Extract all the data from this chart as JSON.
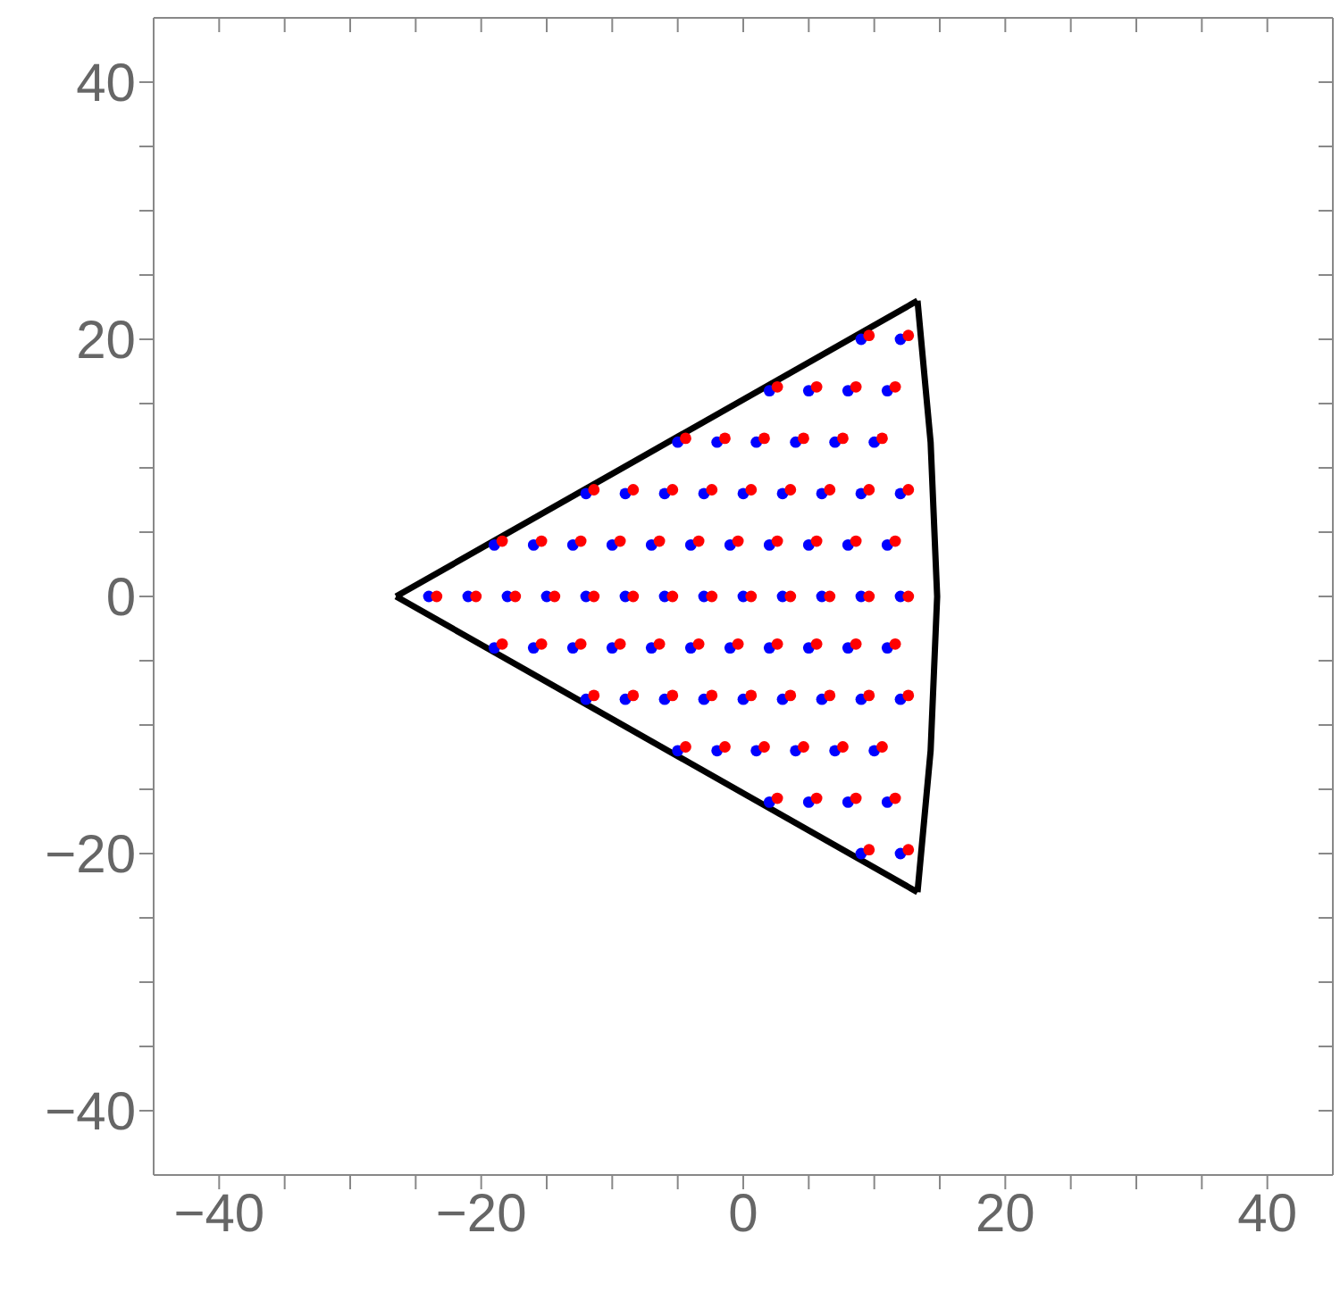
{
  "chart_data": {
    "type": "scatter",
    "marker": "circle",
    "grid": false,
    "xlim": [
      -45,
      45
    ],
    "ylim": [
      -45,
      45
    ],
    "xticks": [
      {
        "value": -40,
        "label": "−40"
      },
      {
        "value": -35,
        "label": null
      },
      {
        "value": -30,
        "label": null
      },
      {
        "value": -25,
        "label": null
      },
      {
        "value": -20,
        "label": "−20"
      },
      {
        "value": -15,
        "label": null
      },
      {
        "value": -10,
        "label": null
      },
      {
        "value": -5,
        "label": null
      },
      0,
      {
        "value": 5,
        "label": null
      },
      {
        "value": 10,
        "label": null
      },
      {
        "value": 15,
        "label": null
      },
      20,
      {
        "value": 25,
        "label": null
      },
      {
        "value": 30,
        "label": null
      },
      {
        "value": 35,
        "label": null
      },
      40
    ],
    "yticks": [
      {
        "value": -40,
        "label": "−40"
      },
      {
        "value": -35,
        "label": null
      },
      {
        "value": -30,
        "label": null
      },
      {
        "value": -25,
        "label": null
      },
      {
        "value": -20,
        "label": "−20"
      },
      {
        "value": -15,
        "label": null
      },
      {
        "value": -10,
        "label": null
      },
      {
        "value": -5,
        "label": null
      },
      0,
      {
        "value": 5,
        "label": null
      },
      {
        "value": 10,
        "label": null
      },
      {
        "value": 15,
        "label": null
      },
      20,
      {
        "value": 25,
        "label": null
      },
      {
        "value": 30,
        "label": null
      },
      {
        "value": 35,
        "label": null
      },
      40
    ],
    "series": [
      {
        "type": "line",
        "color": "#000000",
        "marker": "none",
        "x": [
          -26.5,
          13.3
        ],
        "values": [
          0,
          23
        ]
      },
      {
        "type": "line",
        "color": "#000000",
        "marker": "none",
        "x": [
          -26.5,
          13.3
        ],
        "values": [
          0,
          -23
        ]
      },
      {
        "type": "line",
        "color": "#000000",
        "marker": "none",
        "x": [
          13.3,
          14.3,
          14.8,
          14.3,
          13.3
        ],
        "values": [
          -23,
          -12,
          0,
          12,
          23
        ]
      },
      {
        "color": "#0000ff",
        "x": [
          -24,
          -21,
          -18,
          -15,
          -12,
          -9,
          -6,
          -3,
          0,
          3,
          6,
          9,
          12,
          -19,
          -16,
          -13,
          -10,
          -7,
          -4,
          -1,
          2,
          5,
          8,
          11,
          -19,
          -16,
          -13,
          -10,
          -7,
          -4,
          -1,
          2,
          5,
          8,
          11,
          -12,
          -9,
          -6,
          -3,
          0,
          3,
          6,
          9,
          12,
          -12,
          -9,
          -6,
          -3,
          0,
          3,
          6,
          9,
          12,
          -5,
          -2,
          1,
          4,
          7,
          10,
          -5,
          -2,
          1,
          4,
          7,
          10,
          2,
          5,
          8,
          11,
          2,
          5,
          8,
          11,
          9,
          12,
          9,
          12
        ],
        "values": [
          0,
          0,
          0,
          0,
          0,
          0,
          0,
          0,
          0,
          0,
          0,
          0,
          0,
          4,
          4,
          4,
          4,
          4,
          4,
          4,
          4,
          4,
          4,
          4,
          -4,
          -4,
          -4,
          -4,
          -4,
          -4,
          -4,
          -4,
          -4,
          -4,
          -4,
          8,
          8,
          8,
          8,
          8,
          8,
          8,
          8,
          8,
          -8,
          -8,
          -8,
          -8,
          -8,
          -8,
          -8,
          -8,
          -8,
          12,
          12,
          12,
          12,
          12,
          12,
          -12,
          -12,
          -12,
          -12,
          -12,
          -12,
          16,
          16,
          16,
          16,
          -16,
          -16,
          -16,
          -16,
          20,
          20,
          -20,
          -20
        ]
      },
      {
        "color": "#ff0000",
        "x": [
          -23.4,
          -20.4,
          -17.4,
          -14.4,
          -11.4,
          -8.4,
          -5.4,
          -2.4,
          0.6,
          3.6,
          6.6,
          9.6,
          12.6,
          -18.4,
          -15.4,
          -12.4,
          -9.4,
          -6.4,
          -3.4,
          -0.4,
          2.6,
          5.6,
          8.6,
          11.6,
          -18.4,
          -15.4,
          -12.4,
          -9.4,
          -6.4,
          -3.4,
          -0.4,
          2.6,
          5.6,
          8.6,
          11.6,
          -11.4,
          -8.4,
          -5.4,
          -2.4,
          0.6,
          3.6,
          6.6,
          9.6,
          12.6,
          -11.4,
          -8.4,
          -5.4,
          -2.4,
          0.6,
          3.6,
          6.6,
          9.6,
          12.6,
          -4.4,
          -1.4,
          1.6,
          4.6,
          7.6,
          10.6,
          -4.4,
          -1.4,
          1.6,
          4.6,
          7.6,
          10.6,
          2.6,
          5.6,
          8.6,
          11.6,
          2.6,
          5.6,
          8.6,
          11.6,
          9.6,
          12.6,
          9.6,
          12.6
        ],
        "values": [
          0,
          0,
          0,
          0,
          0,
          0,
          0,
          0,
          0,
          0,
          0,
          0,
          0,
          4.3,
          4.3,
          4.3,
          4.3,
          4.3,
          4.3,
          4.3,
          4.3,
          4.3,
          4.3,
          4.3,
          -3.7,
          -3.7,
          -3.7,
          -3.7,
          -3.7,
          -3.7,
          -3.7,
          -3.7,
          -3.7,
          -3.7,
          -3.7,
          8.3,
          8.3,
          8.3,
          8.3,
          8.3,
          8.3,
          8.3,
          8.3,
          8.3,
          -7.7,
          -7.7,
          -7.7,
          -7.7,
          -7.7,
          -7.7,
          -7.7,
          -7.7,
          -7.7,
          12.3,
          12.3,
          12.3,
          12.3,
          12.3,
          12.3,
          -11.7,
          -11.7,
          -11.7,
          -11.7,
          -11.7,
          -11.7,
          16.3,
          16.3,
          16.3,
          16.3,
          -15.7,
          -15.7,
          -15.7,
          -15.7,
          20.3,
          20.3,
          -19.7,
          -19.7
        ]
      }
    ]
  }
}
